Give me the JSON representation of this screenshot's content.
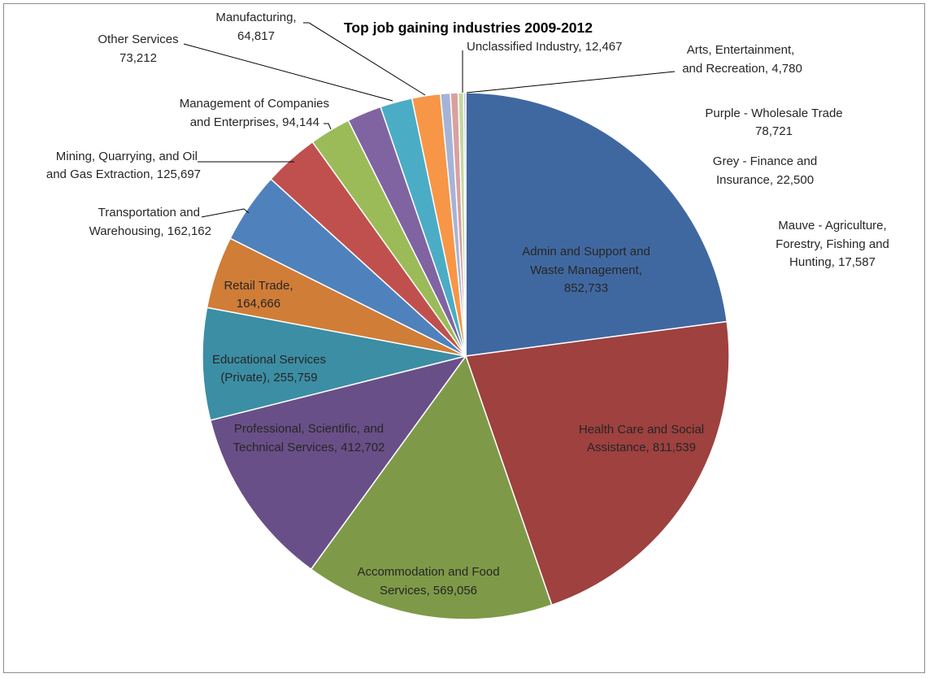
{
  "chart_data": {
    "type": "pie",
    "title": "Top job gaining industries 2009-2012",
    "start_angle_deg": 0,
    "direction": "clockwise",
    "legend": "none",
    "slices": [
      {
        "label": "Admin and Support and Waste Management",
        "value": 852733,
        "color": "#4068A0",
        "text_lines": [
          "Admin and Support and",
          "Waste Management,",
          "852,733"
        ]
      },
      {
        "label": "Health Care and Social Assistance",
        "value": 811539,
        "color": "#9E413F",
        "text_lines": [
          "Health Care and Social",
          "Assistance, 811,539"
        ]
      },
      {
        "label": "Accommodation and Food Services",
        "value": 569056,
        "color": "#7E9A48",
        "text_lines": [
          "Accommodation and Food",
          "Services, 569,056"
        ]
      },
      {
        "label": "Professional, Scientific, and Technical Services",
        "value": 412702,
        "color": "#694F87",
        "text_lines": [
          "Professional, Scientific, and",
          "Technical Services, 412,702"
        ]
      },
      {
        "label": "Educational Services (Private)",
        "value": 255759,
        "color": "#3C8EA4",
        "text_lines": [
          "Educational Services",
          "(Private), 255,759"
        ]
      },
      {
        "label": "Retail Trade",
        "value": 164666,
        "color": "#D07D38",
        "text_lines": [
          "Retail Trade,",
          "164,666"
        ]
      },
      {
        "label": "Transportation and Warehousing",
        "value": 162162,
        "color": "#4F81BD",
        "text_lines": [
          "Transportation and",
          "Warehousing, 162,162"
        ]
      },
      {
        "label": "Mining, Quarrying, and Oil and Gas Extraction",
        "value": 125697,
        "color": "#C0504D",
        "text_lines": [
          "Mining, Quarrying, and Oil",
          "and Gas Extraction, 125,697"
        ]
      },
      {
        "label": "Management of Companies and Enterprises",
        "value": 94144,
        "color": "#9BBB59",
        "text_lines": [
          "Management of Companies",
          "and Enterprises, 94,144"
        ]
      },
      {
        "label": "Wholesale Trade",
        "value": 78721,
        "color": "#8064A2",
        "text_lines": []
      },
      {
        "label": "Other Services",
        "value": 73212,
        "color": "#4BACC6",
        "text_lines": [
          "Other Services",
          "73,212"
        ]
      },
      {
        "label": "Manufacturing",
        "value": 64817,
        "color": "#F79646",
        "text_lines": [
          "Manufacturing,",
          "64,817"
        ]
      },
      {
        "label": "Finance and Insurance",
        "value": 22500,
        "color": "#A5B4D6",
        "text_lines": []
      },
      {
        "label": "Agriculture, Forestry, Fishing and Hunting",
        "value": 17587,
        "color": "#D8A1A0",
        "text_lines": []
      },
      {
        "label": "Unclassified Industry",
        "value": 12467,
        "color": "#C6D6A2",
        "text_lines": [
          "Unclassified Industry, 12,467"
        ]
      },
      {
        "label": "Arts, Entertainment, and Recreation",
        "value": 4780,
        "color": "#B8AED0",
        "text_lines": [
          "Arts, Entertainment,",
          "and Recreation, 4,780"
        ]
      }
    ],
    "notes": [
      {
        "lines": [
          "Purple  - Wholesale Trade",
          "78,721"
        ]
      },
      {
        "lines": [
          "Grey - Finance and",
          "Insurance, 22,500"
        ]
      },
      {
        "lines": [
          "Mauve - Agriculture,",
          "Forestry, Fishing and",
          "Hunting, 17,587"
        ]
      }
    ]
  }
}
